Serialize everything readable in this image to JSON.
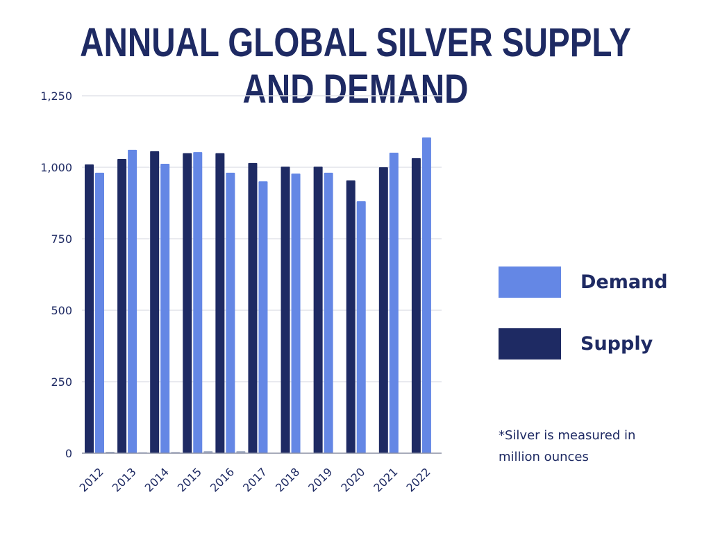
{
  "chart_data": {
    "type": "bar",
    "title": "ANNUAL GLOBAL SILVER SUPPLY AND DEMAND",
    "categories": [
      "2012",
      "2013",
      "2014",
      "2015",
      "2016",
      "2017",
      "2018",
      "2019",
      "2020",
      "2021",
      "2022"
    ],
    "series": [
      {
        "name": "Supply",
        "color": "#1e2a63",
        "values": [
          1010,
          1029,
          1056,
          1049,
          1049,
          1015,
          1002,
          1002,
          954,
          1000,
          1032
        ]
      },
      {
        "name": "Demand",
        "color": "#6487e5",
        "values": [
          981,
          1061,
          1012,
          1053,
          981,
          951,
          978,
          981,
          881,
          1051,
          1104
        ]
      },
      {
        "color": "#a3adc4",
        "values": [
          5,
          3,
          4,
          7,
          7,
          0,
          0,
          0,
          0,
          0,
          0
        ]
      }
    ],
    "ylim": [
      0,
      1250
    ],
    "yticks": [
      "0",
      "250",
      "500",
      "750",
      "1,000",
      "1,250"
    ],
    "ytick_values": [
      0,
      250,
      500,
      750,
      1000,
      1250
    ],
    "grid": true,
    "legend_placement": "right",
    "note": "*Silver is measured in million ounces"
  }
}
